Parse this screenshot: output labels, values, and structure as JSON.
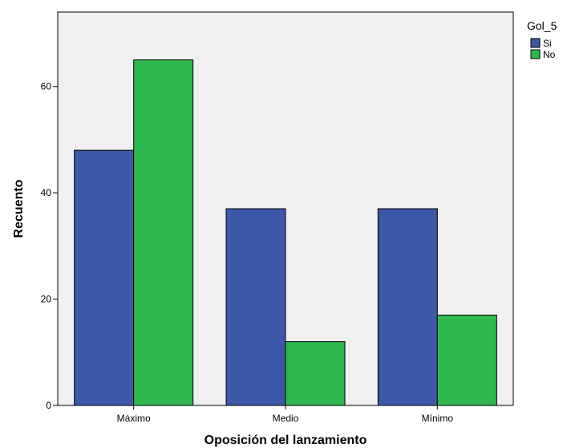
{
  "chart_data": {
    "type": "bar",
    "categories": [
      "Máximo",
      "Medio",
      "Mínimo"
    ],
    "series": [
      {
        "name": "Si",
        "values": [
          48,
          37,
          37
        ],
        "color": "#3c58a8"
      },
      {
        "name": "No",
        "values": [
          65,
          12,
          17
        ],
        "color": "#2fb84b"
      }
    ],
    "xlabel": "Oposición del lanzamiento",
    "ylabel": "Recuento",
    "ylim": [
      0,
      74
    ],
    "yticks": [
      0,
      20,
      40,
      60
    ],
    "legend_title": "Gol_5",
    "legend_position": "top-right",
    "plot_background": "#f0f0f0",
    "grid": false
  }
}
